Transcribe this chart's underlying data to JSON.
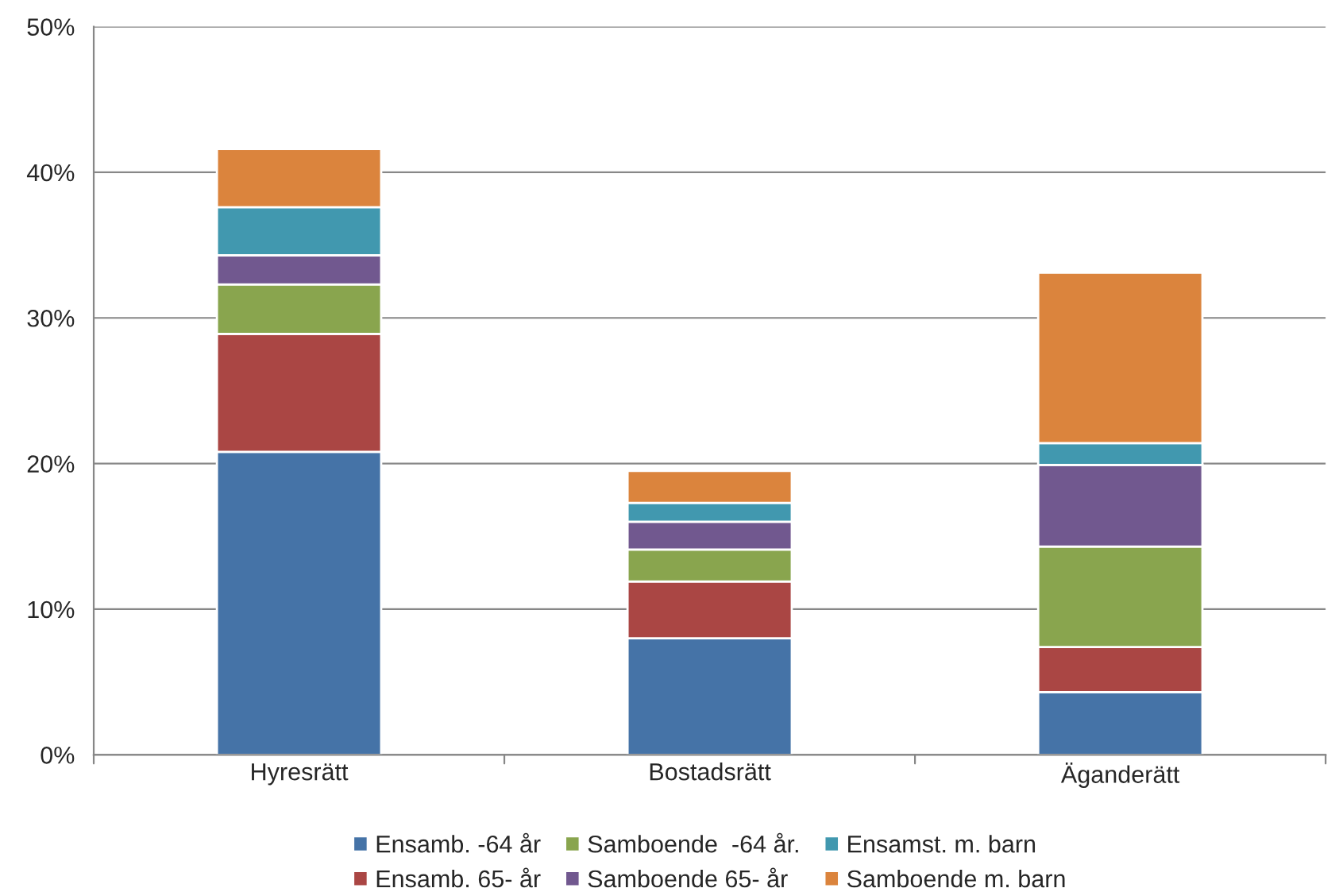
{
  "chart_data": {
    "type": "bar",
    "stacked": true,
    "categories": [
      "Hyresrätt",
      "Bostadsrätt",
      "Äganderätt"
    ],
    "series": [
      {
        "name": "Ensamb. -64 år",
        "color": "#4573a7",
        "values": [
          20.8,
          8.0,
          4.3
        ]
      },
      {
        "name": "Ensamb. 65- år",
        "color": "#aa4644",
        "values": [
          8.1,
          3.9,
          3.1
        ]
      },
      {
        "name": "Samboende  -64 år.",
        "color": "#89a54e",
        "values": [
          3.4,
          2.2,
          6.9
        ]
      },
      {
        "name": "Samboende 65- år",
        "color": "#71588f",
        "values": [
          2.0,
          1.9,
          5.6
        ]
      },
      {
        "name": "Ensamst. m. barn",
        "color": "#4198af",
        "values": [
          3.3,
          1.3,
          1.5
        ]
      },
      {
        "name": "Samboende m. barn",
        "color": "#db843d",
        "values": [
          4.0,
          2.2,
          11.7
        ]
      }
    ],
    "ylim": [
      0,
      50
    ],
    "yticks": [
      {
        "value": 0,
        "label": "0%"
      },
      {
        "value": 10,
        "label": "10%"
      },
      {
        "value": 20,
        "label": "20%"
      },
      {
        "value": 30,
        "label": "30%"
      },
      {
        "value": 40,
        "label": "40%"
      },
      {
        "value": 50,
        "label": "50%"
      }
    ],
    "grid": "y",
    "legend": "bottom"
  }
}
